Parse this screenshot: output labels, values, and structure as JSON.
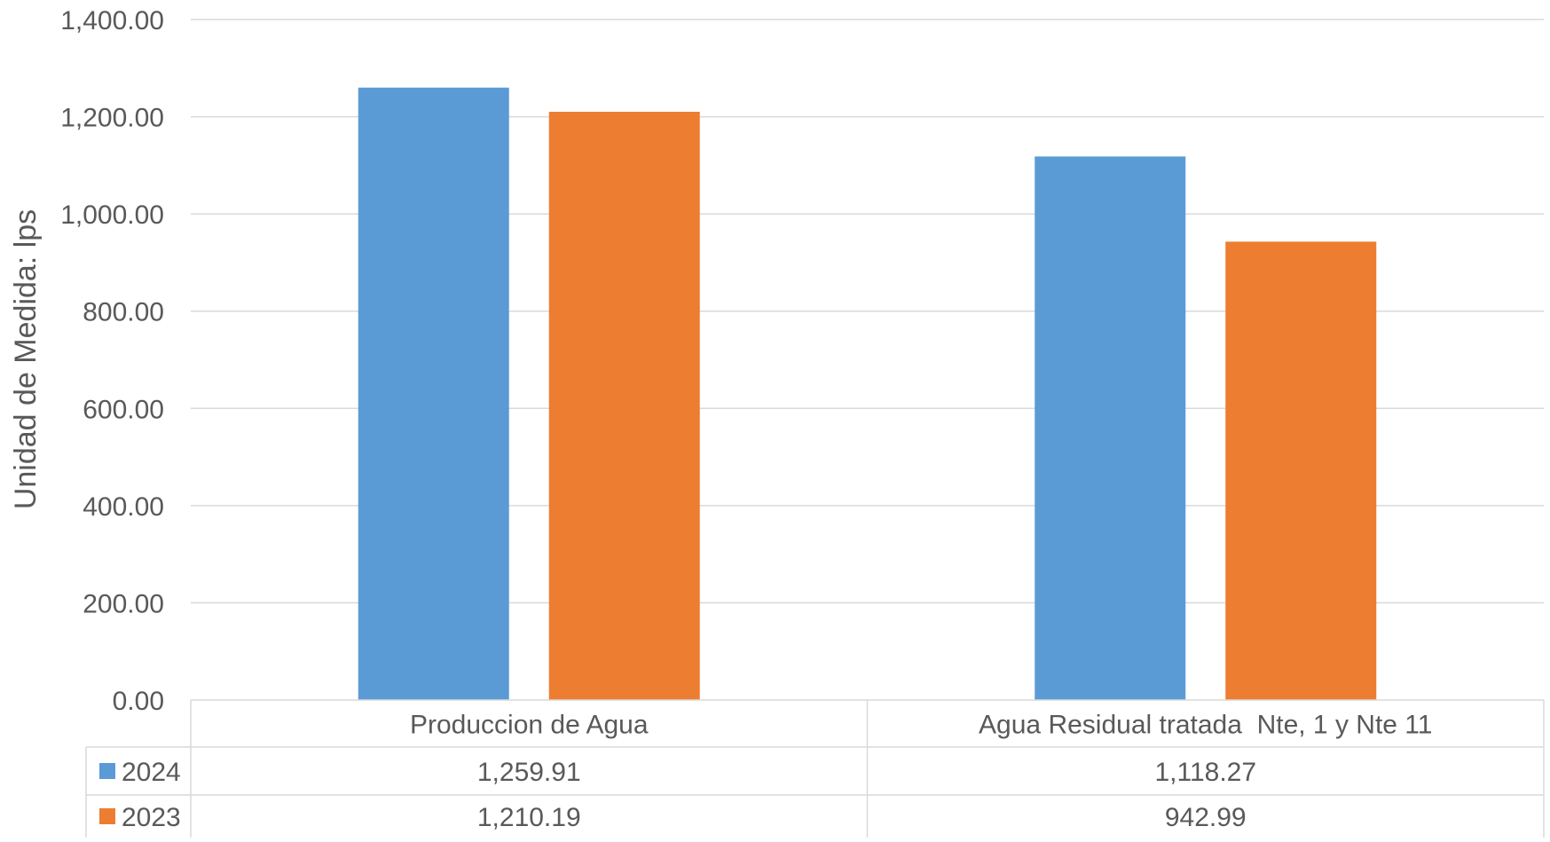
{
  "chart_data": {
    "type": "bar",
    "title": "",
    "xlabel": "",
    "ylabel": "Unidad de Medida: lps",
    "ylim": [
      0,
      1400
    ],
    "y_ticks": [
      "0.00",
      "200.00",
      "400.00",
      "600.00",
      "800.00",
      "1,000.00",
      "1,200.00",
      "1,400.00"
    ],
    "grid": true,
    "legend_placement": "data-table",
    "categories": [
      "Produccion de Agua",
      "Agua Residual tratada  Nte, 1 y Nte 11"
    ],
    "series": [
      {
        "name": "2024",
        "color": "#5B9BD5",
        "values": [
          1259.91,
          1118.27
        ],
        "labels": [
          "1,259.91",
          "1,118.27"
        ]
      },
      {
        "name": "2023",
        "color": "#ED7D31",
        "values": [
          1210.19,
          942.99
        ],
        "labels": [
          "1,210.19",
          "942.99"
        ]
      }
    ]
  }
}
